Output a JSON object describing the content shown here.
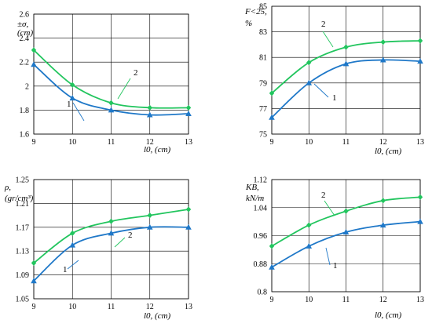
{
  "chart_data": [
    {
      "type": "line",
      "ylabel_lines": [
        "±σ,",
        "(cm)"
      ],
      "xlabel": "l0, (cm)",
      "x": [
        9,
        10,
        11,
        12,
        13
      ],
      "xlim": [
        9,
        13
      ],
      "ylim": [
        1.6,
        2.6
      ],
      "yticks": [
        "1.6",
        "1.8",
        "2",
        "2.2",
        "2.4",
        "2.6"
      ],
      "ytick_values": [
        1.6,
        1.8,
        2.0,
        2.2,
        2.4,
        2.6
      ],
      "xticks": [
        "9",
        "10",
        "11",
        "12",
        "13"
      ],
      "grid": true,
      "series": [
        {
          "name": "1",
          "color": "#1f78c8",
          "marker": "triangle",
          "values": [
            2.18,
            1.9,
            1.8,
            1.76,
            1.77
          ]
        },
        {
          "name": "2",
          "color": "#22c55e",
          "marker": "diamond",
          "values": [
            2.3,
            2.01,
            1.86,
            1.82,
            1.82
          ]
        }
      ]
    },
    {
      "type": "line",
      "ylabel_lines": [
        "F<25,",
        "%"
      ],
      "xlabel": "l0, (cm)",
      "x": [
        9,
        10,
        11,
        12,
        13
      ],
      "xlim": [
        9,
        13
      ],
      "ylim": [
        75,
        85
      ],
      "yticks": [
        "75",
        "77",
        "79",
        "81",
        "83",
        "85"
      ],
      "ytick_values": [
        75,
        77,
        79,
        81,
        83,
        85
      ],
      "xticks": [
        "9",
        "10",
        "11",
        "12",
        "13"
      ],
      "grid": true,
      "series": [
        {
          "name": "1",
          "color": "#1f78c8",
          "marker": "triangle",
          "values": [
            76.3,
            79.0,
            80.5,
            80.8,
            80.7
          ]
        },
        {
          "name": "2",
          "color": "#22c55e",
          "marker": "diamond",
          "values": [
            78.2,
            80.6,
            81.8,
            82.2,
            82.3
          ]
        }
      ]
    },
    {
      "type": "line",
      "ylabel_lines": [
        "ρ,",
        "(gr/cm³)"
      ],
      "xlabel": "l0, (cm)",
      "x": [
        9,
        10,
        11,
        12,
        13
      ],
      "xlim": [
        9,
        13
      ],
      "ylim": [
        1.05,
        1.25
      ],
      "yticks": [
        "1.05",
        "1.09",
        "1.13",
        "1.17",
        "1.21",
        "1.25"
      ],
      "ytick_values": [
        1.05,
        1.09,
        1.13,
        1.17,
        1.21,
        1.25
      ],
      "xticks": [
        "9",
        "10",
        "11",
        "12",
        "13"
      ],
      "grid": true,
      "series": [
        {
          "name": "1",
          "color": "#1f78c8",
          "marker": "triangle",
          "values": [
            1.08,
            1.14,
            1.16,
            1.17,
            1.17
          ]
        },
        {
          "name": "2",
          "color": "#22c55e",
          "marker": "diamond",
          "values": [
            1.11,
            1.16,
            1.18,
            1.19,
            1.2
          ]
        }
      ]
    },
    {
      "type": "line",
      "ylabel_lines": [
        "KB,",
        "kN/m"
      ],
      "xlabel": "l0, (cm)",
      "x": [
        9,
        10,
        11,
        12,
        13
      ],
      "xlim": [
        9,
        13
      ],
      "ylim": [
        0.8,
        1.12
      ],
      "yticks": [
        "0.8",
        "0.88",
        "0.96",
        "1.04",
        "1.12"
      ],
      "ytick_values": [
        0.8,
        0.88,
        0.96,
        1.04,
        1.12
      ],
      "xticks": [
        "9",
        "10",
        "11",
        "12",
        "13"
      ],
      "grid": true,
      "series": [
        {
          "name": "1",
          "color": "#1f78c8",
          "marker": "triangle",
          "values": [
            0.87,
            0.93,
            0.97,
            0.99,
            1.0
          ]
        },
        {
          "name": "2",
          "color": "#22c55e",
          "marker": "diamond",
          "values": [
            0.93,
            0.99,
            1.03,
            1.06,
            1.07
          ]
        }
      ]
    }
  ]
}
